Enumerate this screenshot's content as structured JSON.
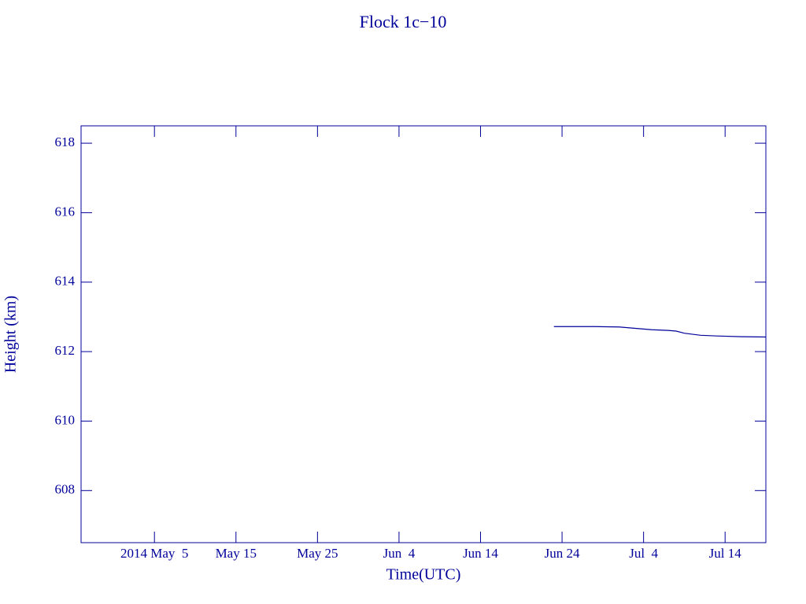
{
  "chart_data": {
    "type": "line",
    "title": "Flock 1c−10",
    "x_label": "Time(UTC)",
    "y_label": "Height (km)",
    "x": [
      "2014-06-23",
      "2014-06-28",
      "2014-07-01",
      "2014-07-03",
      "2014-07-05",
      "2014-07-07",
      "2014-07-08",
      "2014-07-09",
      "2014-07-11",
      "2014-07-13",
      "2014-07-16",
      "2014-07-19"
    ],
    "series": [
      {
        "name": "Height",
        "color": "#00009a",
        "values": [
          612.72,
          612.72,
          612.71,
          612.67,
          612.63,
          612.61,
          612.59,
          612.53,
          612.47,
          612.45,
          612.43,
          612.42
        ]
      }
    ],
    "xlim": [
      "2014-04-26",
      "2014-07-19"
    ],
    "xticks": [
      {
        "value": "2014-05-05",
        "label": "2014 May  5"
      },
      {
        "value": "2014-05-15",
        "label": "May 15"
      },
      {
        "value": "2014-05-25",
        "label": "May 25"
      },
      {
        "value": "2014-06-04",
        "label": "Jun  4"
      },
      {
        "value": "2014-06-14",
        "label": "Jun 14"
      },
      {
        "value": "2014-06-24",
        "label": "Jun 24"
      },
      {
        "value": "2014-07-04",
        "label": "Jul  4"
      },
      {
        "value": "2014-07-14",
        "label": "Jul 14"
      }
    ],
    "ylim": [
      606.5,
      618.5
    ],
    "yticks": [
      608,
      610,
      612,
      614,
      616,
      618
    ],
    "grid": false
  }
}
